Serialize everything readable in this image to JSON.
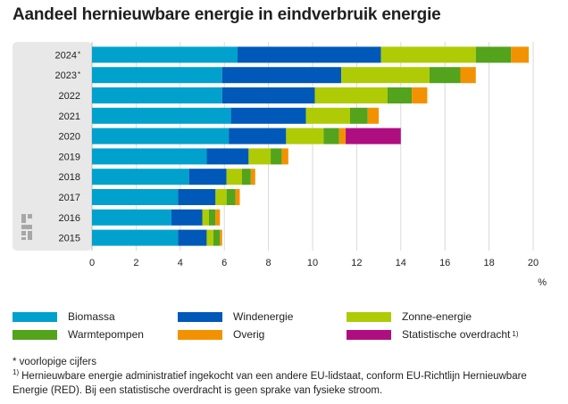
{
  "title": "Aandeel hernieuwbare energie in eindverbruik energie",
  "chart_data": {
    "type": "bar",
    "orientation": "horizontal",
    "stacked": true,
    "title": "Aandeel hernieuwbare energie in eindverbruik energie",
    "xlabel": "%",
    "xlim": [
      0,
      20
    ],
    "xticks": [
      "0",
      "2",
      "4",
      "6",
      "8",
      "10",
      "12",
      "14",
      "16",
      "18",
      "20"
    ],
    "categories": [
      "2024*",
      "2023*",
      "2022",
      "2021",
      "2020",
      "2019",
      "2018",
      "2017",
      "2016",
      "2015"
    ],
    "category_labels": [
      {
        "year": "2024",
        "mark": "*"
      },
      {
        "year": "2023",
        "mark": "*"
      },
      {
        "year": "2022",
        "mark": ""
      },
      {
        "year": "2021",
        "mark": ""
      },
      {
        "year": "2020",
        "mark": ""
      },
      {
        "year": "2019",
        "mark": ""
      },
      {
        "year": "2018",
        "mark": ""
      },
      {
        "year": "2017",
        "mark": ""
      },
      {
        "year": "2016",
        "mark": ""
      },
      {
        "year": "2015",
        "mark": ""
      }
    ],
    "series": [
      {
        "name": "Biomassa",
        "color": "#00a1cd",
        "values": [
          6.6,
          5.9,
          5.9,
          6.3,
          6.2,
          5.2,
          4.4,
          3.9,
          3.6,
          3.9
        ]
      },
      {
        "name": "Windenergie",
        "color": "#0058b8",
        "values": [
          6.5,
          5.4,
          4.2,
          3.4,
          2.6,
          1.9,
          1.7,
          1.7,
          1.4,
          1.3
        ]
      },
      {
        "name": "Zonne-energie",
        "color": "#afcb05",
        "values": [
          4.3,
          4.0,
          3.3,
          2.0,
          1.7,
          1.0,
          0.7,
          0.5,
          0.3,
          0.3
        ]
      },
      {
        "name": "Warmtepompen",
        "color": "#53a31d",
        "values": [
          1.6,
          1.4,
          1.1,
          0.8,
          0.7,
          0.5,
          0.4,
          0.4,
          0.3,
          0.3
        ]
      },
      {
        "name": "Overig",
        "color": "#f39200",
        "values": [
          0.8,
          0.7,
          0.7,
          0.5,
          0.3,
          0.3,
          0.2,
          0.2,
          0.2,
          0.1
        ]
      },
      {
        "name": "Statistische overdracht",
        "color": "#af0e80",
        "values": [
          0,
          0,
          0,
          0,
          2.5,
          0,
          0,
          0,
          0,
          0
        ]
      }
    ]
  },
  "legend": [
    {
      "label": "Biomassa",
      "color": "#00a1cd",
      "sup": ""
    },
    {
      "label": "Windenergie",
      "color": "#0058b8",
      "sup": ""
    },
    {
      "label": "Zonne-energie",
      "color": "#afcb05",
      "sup": ""
    },
    {
      "label": "Warmtepompen",
      "color": "#53a31d",
      "sup": ""
    },
    {
      "label": "Overig",
      "color": "#f39200",
      "sup": ""
    },
    {
      "label": "Statistische overdracht",
      "color": "#af0e80",
      "sup": "1)"
    }
  ],
  "footnotes": {
    "note1": "* voorlopige cijfers",
    "note2_mark": "1)",
    "note2": "Hernieuwbare energie administratief ingekocht van een andere EU-lidstaat, conform EU-Richtlijn Hernieuwbare Energie (RED). Bij een statistische overdracht is geen sprake van fysieke stroom."
  },
  "logo": "cbs-logo"
}
